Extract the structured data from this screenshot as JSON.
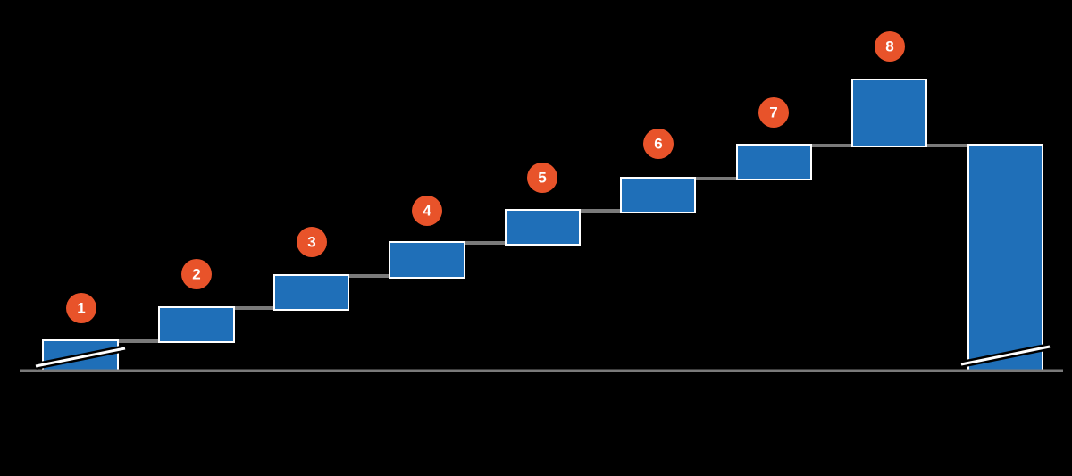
{
  "nodes": [
    {
      "label": "1"
    },
    {
      "label": "2"
    },
    {
      "label": "3"
    },
    {
      "label": "4"
    },
    {
      "label": "5"
    },
    {
      "label": "6"
    },
    {
      "label": "7"
    },
    {
      "label": "8"
    }
  ]
}
